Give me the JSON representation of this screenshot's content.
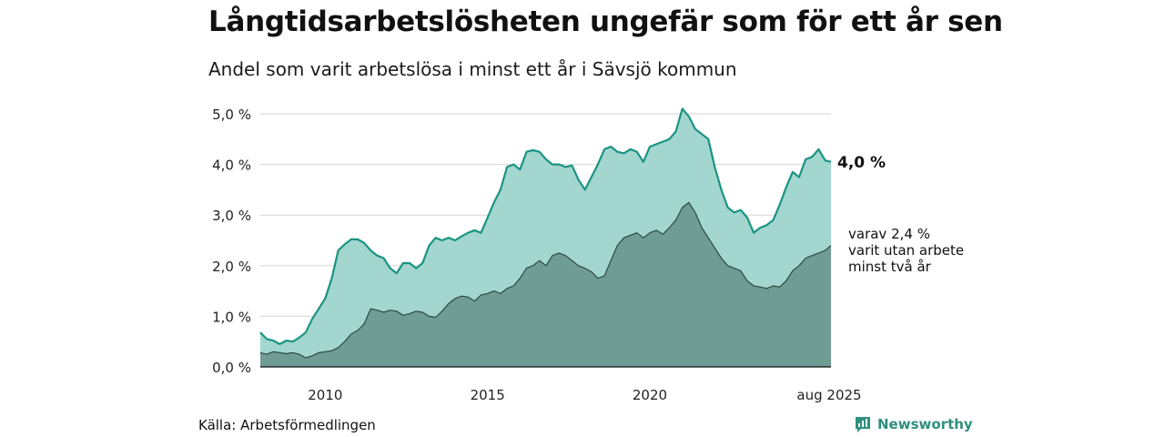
{
  "title": "Långtidsarbetslösheten ungefär som för ett år sen",
  "subtitle": "Andel som varit arbetslösa i minst ett år i Sävsjö kommun",
  "source": "Källa: Arbetsförmedlingen",
  "brand": {
    "name": "Newsworthy",
    "logo_icon": "newsworthy-logo-icon",
    "color": "#2f8f7d"
  },
  "chart_data": {
    "type": "area",
    "title": "",
    "xlabel": "",
    "ylabel": "",
    "x_range": [
      2008.0,
      2025.58
    ],
    "ylim": [
      0,
      5.0
    ],
    "y_ticks": [
      0,
      1,
      2,
      3,
      4,
      5
    ],
    "y_tick_labels": [
      "0,0 %",
      "1,0 %",
      "2,0 %",
      "3,0 %",
      "4,0 %",
      "5,0 %"
    ],
    "x_ticks": [
      2010,
      2015,
      2020,
      2025.58
    ],
    "x_tick_labels": [
      "2010",
      "2015",
      "2020",
      "aug 2025"
    ],
    "grid": true,
    "colors": {
      "outer_fill": "#a2d6cf",
      "outer_line": "#1b9482",
      "inner_fill": "#6f9c94",
      "inner_line": "#2b4a45",
      "grid": "#d5d5d5"
    },
    "series": [
      {
        "name": "",
        "end_label": "4,0 %",
        "points": [
          [
            2008.0,
            0.68
          ],
          [
            2008.2,
            0.55
          ],
          [
            2008.4,
            0.52
          ],
          [
            2008.6,
            0.45
          ],
          [
            2008.8,
            0.52
          ],
          [
            2009.0,
            0.5
          ],
          [
            2009.2,
            0.58
          ],
          [
            2009.4,
            0.68
          ],
          [
            2009.6,
            0.95
          ],
          [
            2009.8,
            1.15
          ],
          [
            2010.0,
            1.35
          ],
          [
            2010.2,
            1.75
          ],
          [
            2010.4,
            2.3
          ],
          [
            2010.6,
            2.42
          ],
          [
            2010.8,
            2.52
          ],
          [
            2011.0,
            2.52
          ],
          [
            2011.2,
            2.45
          ],
          [
            2011.4,
            2.3
          ],
          [
            2011.6,
            2.2
          ],
          [
            2011.8,
            2.15
          ],
          [
            2012.0,
            1.95
          ],
          [
            2012.2,
            1.85
          ],
          [
            2012.4,
            2.05
          ],
          [
            2012.6,
            2.05
          ],
          [
            2012.8,
            1.95
          ],
          [
            2013.0,
            2.05
          ],
          [
            2013.2,
            2.4
          ],
          [
            2013.4,
            2.55
          ],
          [
            2013.6,
            2.5
          ],
          [
            2013.8,
            2.55
          ],
          [
            2014.0,
            2.5
          ],
          [
            2014.2,
            2.58
          ],
          [
            2014.4,
            2.65
          ],
          [
            2014.6,
            2.7
          ],
          [
            2014.8,
            2.65
          ],
          [
            2015.0,
            2.95
          ],
          [
            2015.2,
            3.25
          ],
          [
            2015.4,
            3.5
          ],
          [
            2015.6,
            3.95
          ],
          [
            2015.8,
            4.0
          ],
          [
            2016.0,
            3.9
          ],
          [
            2016.2,
            4.25
          ],
          [
            2016.4,
            4.28
          ],
          [
            2016.6,
            4.25
          ],
          [
            2016.8,
            4.1
          ],
          [
            2017.0,
            4.0
          ],
          [
            2017.2,
            4.0
          ],
          [
            2017.4,
            3.95
          ],
          [
            2017.6,
            3.98
          ],
          [
            2017.8,
            3.7
          ],
          [
            2018.0,
            3.5
          ],
          [
            2018.2,
            3.75
          ],
          [
            2018.4,
            4.0
          ],
          [
            2018.6,
            4.3
          ],
          [
            2018.8,
            4.35
          ],
          [
            2019.0,
            4.25
          ],
          [
            2019.2,
            4.22
          ],
          [
            2019.4,
            4.3
          ],
          [
            2019.6,
            4.25
          ],
          [
            2019.8,
            4.05
          ],
          [
            2020.0,
            4.35
          ],
          [
            2020.2,
            4.4
          ],
          [
            2020.4,
            4.45
          ],
          [
            2020.6,
            4.5
          ],
          [
            2020.8,
            4.65
          ],
          [
            2021.0,
            5.1
          ],
          [
            2021.2,
            4.95
          ],
          [
            2021.4,
            4.7
          ],
          [
            2021.6,
            4.6
          ],
          [
            2021.8,
            4.5
          ],
          [
            2022.0,
            3.95
          ],
          [
            2022.2,
            3.5
          ],
          [
            2022.4,
            3.15
          ],
          [
            2022.6,
            3.05
          ],
          [
            2022.8,
            3.1
          ],
          [
            2023.0,
            2.95
          ],
          [
            2023.2,
            2.65
          ],
          [
            2023.4,
            2.75
          ],
          [
            2023.6,
            2.8
          ],
          [
            2023.8,
            2.9
          ],
          [
            2024.0,
            3.2
          ],
          [
            2024.2,
            3.55
          ],
          [
            2024.4,
            3.85
          ],
          [
            2024.6,
            3.75
          ],
          [
            2024.8,
            4.1
          ],
          [
            2025.0,
            4.15
          ],
          [
            2025.2,
            4.3
          ],
          [
            2025.4,
            4.08
          ],
          [
            2025.58,
            4.05
          ]
        ]
      },
      {
        "name": "",
        "end_label": "varav 2,4 % varit utan arbete minst två år",
        "end_label_lines": [
          "varav 2,4 %",
          "varit utan arbete",
          "minst två år"
        ],
        "points": [
          [
            2008.0,
            0.28
          ],
          [
            2008.2,
            0.25
          ],
          [
            2008.4,
            0.3
          ],
          [
            2008.6,
            0.28
          ],
          [
            2008.8,
            0.26
          ],
          [
            2009.0,
            0.28
          ],
          [
            2009.2,
            0.25
          ],
          [
            2009.4,
            0.18
          ],
          [
            2009.6,
            0.22
          ],
          [
            2009.8,
            0.28
          ],
          [
            2010.0,
            0.3
          ],
          [
            2010.2,
            0.32
          ],
          [
            2010.4,
            0.38
          ],
          [
            2010.6,
            0.5
          ],
          [
            2010.8,
            0.65
          ],
          [
            2011.0,
            0.72
          ],
          [
            2011.2,
            0.85
          ],
          [
            2011.4,
            1.15
          ],
          [
            2011.6,
            1.12
          ],
          [
            2011.8,
            1.08
          ],
          [
            2012.0,
            1.12
          ],
          [
            2012.2,
            1.1
          ],
          [
            2012.4,
            1.02
          ],
          [
            2012.6,
            1.05
          ],
          [
            2012.8,
            1.1
          ],
          [
            2013.0,
            1.08
          ],
          [
            2013.2,
            1.0
          ],
          [
            2013.4,
            0.98
          ],
          [
            2013.6,
            1.1
          ],
          [
            2013.8,
            1.25
          ],
          [
            2014.0,
            1.35
          ],
          [
            2014.2,
            1.4
          ],
          [
            2014.4,
            1.38
          ],
          [
            2014.6,
            1.3
          ],
          [
            2014.8,
            1.42
          ],
          [
            2015.0,
            1.45
          ],
          [
            2015.2,
            1.5
          ],
          [
            2015.4,
            1.45
          ],
          [
            2015.6,
            1.55
          ],
          [
            2015.8,
            1.6
          ],
          [
            2016.0,
            1.75
          ],
          [
            2016.2,
            1.95
          ],
          [
            2016.4,
            2.0
          ],
          [
            2016.6,
            2.1
          ],
          [
            2016.8,
            2.0
          ],
          [
            2017.0,
            2.2
          ],
          [
            2017.2,
            2.25
          ],
          [
            2017.4,
            2.2
          ],
          [
            2017.6,
            2.1
          ],
          [
            2017.8,
            2.0
          ],
          [
            2018.0,
            1.95
          ],
          [
            2018.2,
            1.88
          ],
          [
            2018.4,
            1.75
          ],
          [
            2018.6,
            1.8
          ],
          [
            2018.8,
            2.1
          ],
          [
            2019.0,
            2.4
          ],
          [
            2019.2,
            2.55
          ],
          [
            2019.4,
            2.6
          ],
          [
            2019.6,
            2.65
          ],
          [
            2019.8,
            2.55
          ],
          [
            2020.0,
            2.65
          ],
          [
            2020.2,
            2.7
          ],
          [
            2020.4,
            2.62
          ],
          [
            2020.6,
            2.75
          ],
          [
            2020.8,
            2.9
          ],
          [
            2021.0,
            3.15
          ],
          [
            2021.2,
            3.25
          ],
          [
            2021.4,
            3.05
          ],
          [
            2021.6,
            2.75
          ],
          [
            2021.8,
            2.55
          ],
          [
            2022.0,
            2.35
          ],
          [
            2022.2,
            2.15
          ],
          [
            2022.4,
            2.0
          ],
          [
            2022.6,
            1.95
          ],
          [
            2022.8,
            1.9
          ],
          [
            2023.0,
            1.7
          ],
          [
            2023.2,
            1.6
          ],
          [
            2023.4,
            1.58
          ],
          [
            2023.6,
            1.55
          ],
          [
            2023.8,
            1.6
          ],
          [
            2024.0,
            1.58
          ],
          [
            2024.2,
            1.7
          ],
          [
            2024.4,
            1.9
          ],
          [
            2024.6,
            2.0
          ],
          [
            2024.8,
            2.15
          ],
          [
            2025.0,
            2.2
          ],
          [
            2025.2,
            2.25
          ],
          [
            2025.4,
            2.3
          ],
          [
            2025.58,
            2.4
          ]
        ]
      }
    ]
  }
}
